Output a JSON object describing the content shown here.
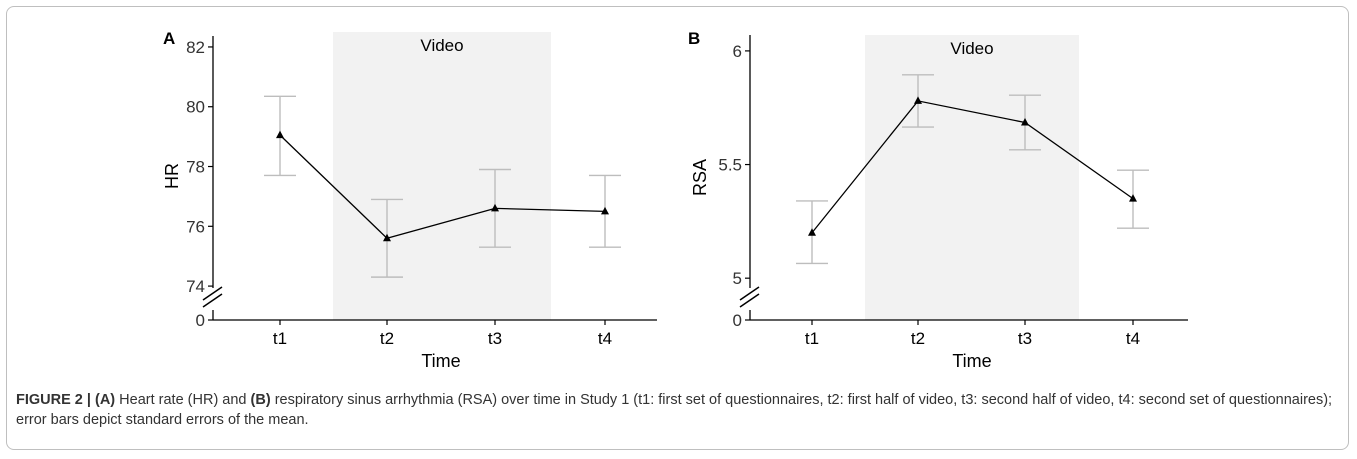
{
  "caption": {
    "lead": "FIGURE 2 | ",
    "part_a_label": "(A)",
    "part_a_text": " Heart rate (HR) and ",
    "part_b_label": "(B)",
    "part_b_text": " respiratory sinus arrhythmia (RSA) over time in Study 1 (t1: first set of questionnaires, t2: first half of video, t3: second half of video, t4: second set of questionnaires); error bars depict standard errors of the mean."
  },
  "chart_data": [
    {
      "panel": "A",
      "type": "line",
      "categories": [
        "t1",
        "t2",
        "t3",
        "t4"
      ],
      "values": [
        79.05,
        75.6,
        76.6,
        76.5
      ],
      "error_low": [
        77.7,
        74.3,
        75.3,
        75.3
      ],
      "error_high": [
        80.35,
        76.9,
        77.9,
        77.7
      ],
      "xlabel": "Time",
      "ylabel": "HR",
      "ylim": [
        73.2,
        82.5
      ],
      "yticks": [
        "74",
        "76",
        "78",
        "80",
        "82"
      ],
      "ytick_values": [
        74,
        76,
        78,
        80,
        82
      ],
      "axis_break_zero_label": "0",
      "shaded_region": {
        "from": "t2",
        "to": "t3",
        "label": "Video"
      },
      "grid": false,
      "marker": "triangle",
      "colors": {
        "line": "#000000",
        "error_bar": "#bdbdbd",
        "shade": "#f2f2f2"
      }
    },
    {
      "panel": "B",
      "type": "line",
      "categories": [
        "t1",
        "t2",
        "t3",
        "t4"
      ],
      "values": [
        5.2,
        5.78,
        5.685,
        5.35
      ],
      "error_low": [
        5.065,
        5.665,
        5.565,
        5.22
      ],
      "error_high": [
        5.34,
        5.895,
        5.805,
        5.475
      ],
      "xlabel": "Time",
      "ylabel": "RSA",
      "ylim": [
        4.86,
        6.07
      ],
      "yticks": [
        "5",
        "5.5",
        "6"
      ],
      "ytick_values": [
        5,
        5.5,
        6
      ],
      "axis_break_zero_label": "0",
      "shaded_region": {
        "from": "t2",
        "to": "t3",
        "label": "Video"
      },
      "grid": false,
      "marker": "triangle",
      "colors": {
        "line": "#000000",
        "error_bar": "#bdbdbd",
        "shade": "#f2f2f2"
      }
    }
  ]
}
